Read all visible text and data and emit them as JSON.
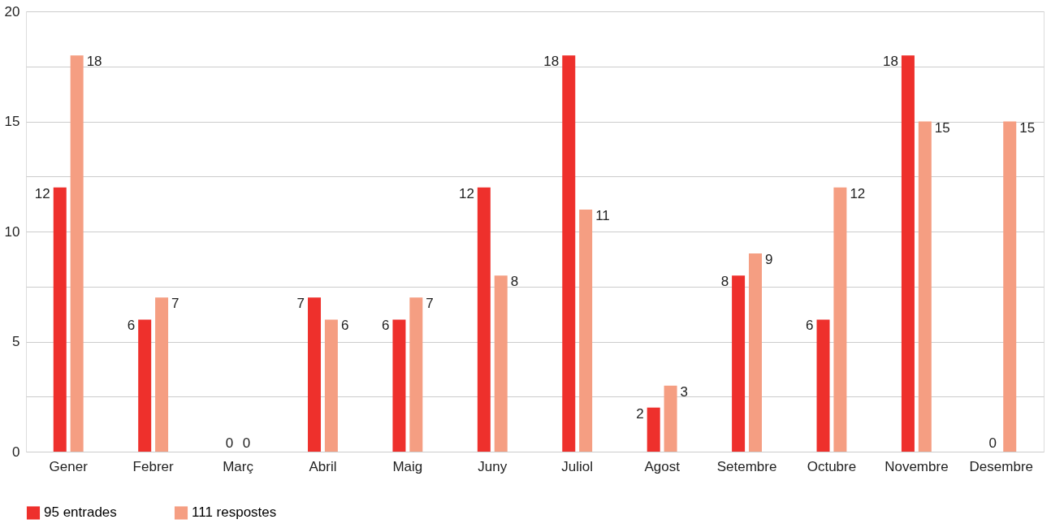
{
  "chart_data": {
    "type": "bar",
    "categories": [
      "Gener",
      "Febrer",
      "Març",
      "Abril",
      "Maig",
      "Juny",
      "Juliol",
      "Agost",
      "Setembre",
      "Octubre",
      "Novembre",
      "Desembre"
    ],
    "series": [
      {
        "name": "95 entrades",
        "color": "#ee302c",
        "values": [
          12,
          6,
          0,
          7,
          6,
          12,
          18,
          2,
          8,
          6,
          18,
          0
        ]
      },
      {
        "name": "111 respostes",
        "color": "#f59e82",
        "values": [
          18,
          7,
          0,
          6,
          7,
          8,
          11,
          3,
          9,
          12,
          15,
          15
        ]
      }
    ],
    "ylim": [
      0,
      20
    ],
    "yticks": [
      0,
      {
        "value": 2.5,
        "label": null
      },
      5,
      {
        "value": 7.5,
        "label": null
      },
      10,
      {
        "value": 12.5,
        "label": null
      },
      15,
      {
        "value": 17.5,
        "label": null
      },
      20
    ],
    "grid": "y",
    "legend": "bottom",
    "data_labels": true
  }
}
